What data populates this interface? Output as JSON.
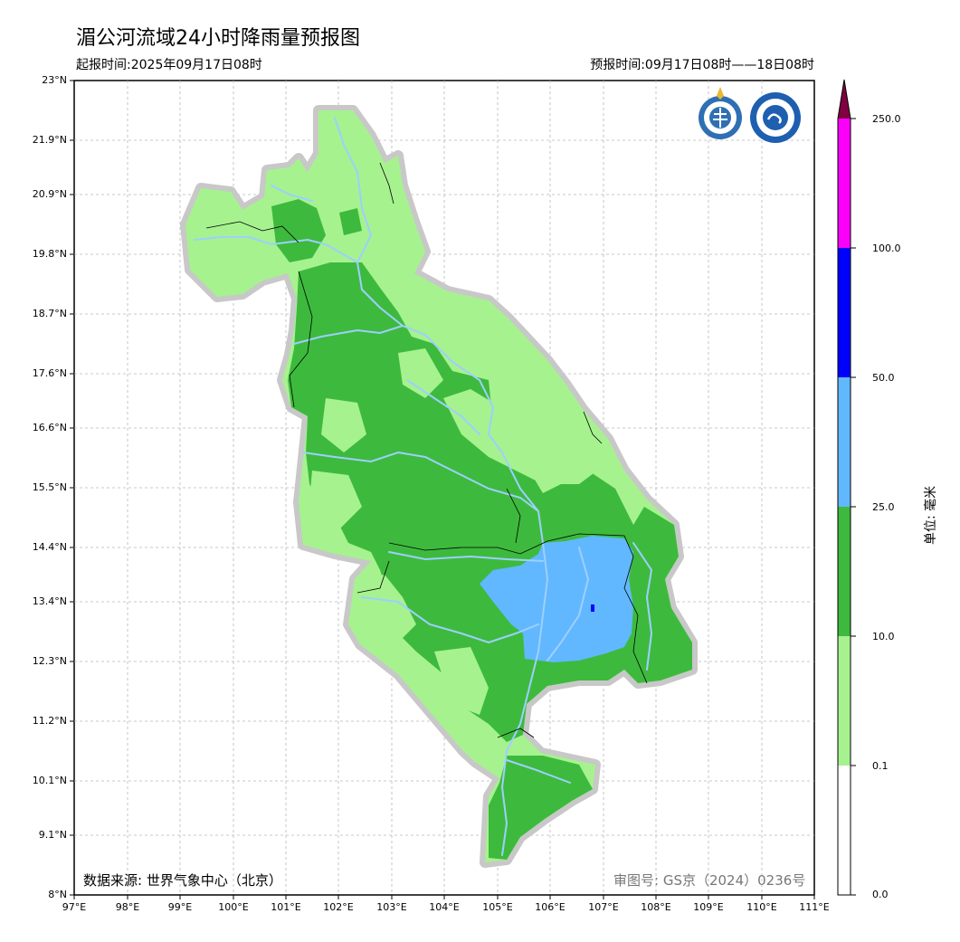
{
  "title": "湄公河流域24小时降雨量预报图",
  "issue_time": "起报时间:2025年09月17日08时",
  "valid_time": "预报时间:09月17日08时——18日08时",
  "source": "数据来源: 世界气象中心（北京）",
  "review_number": "审图号: GS京（2024）0236号",
  "unit_label": "单位: 毫米",
  "lat_labels": [
    "23°N",
    "21.9°N",
    "20.9°N",
    "19.8°N",
    "18.7°N",
    "17.6°N",
    "16.6°N",
    "15.5°N",
    "14.4°N",
    "13.4°N",
    "12.3°N",
    "11.2°N",
    "10.1°N",
    "9.1°N",
    "8°N"
  ],
  "lon_labels": [
    "97°E",
    "98°E",
    "99°E",
    "100°E",
    "101°E",
    "102°E",
    "103°E",
    "104°E",
    "105°E",
    "106°E",
    "107°E",
    "108°E",
    "109°E",
    "110°E",
    "111°E"
  ],
  "colorbar": {
    "levels": [
      "0.0",
      "0.1",
      "10.0",
      "25.0",
      "50.0",
      "100.0",
      "250.0"
    ],
    "colors": [
      "#ffffff",
      "#a6f28f",
      "#3dba3d",
      "#61b8ff",
      "#0000ff",
      "#fa00fa",
      "#800040"
    ]
  },
  "logos": [
    "wmo-logo",
    "cma-logo"
  ]
}
